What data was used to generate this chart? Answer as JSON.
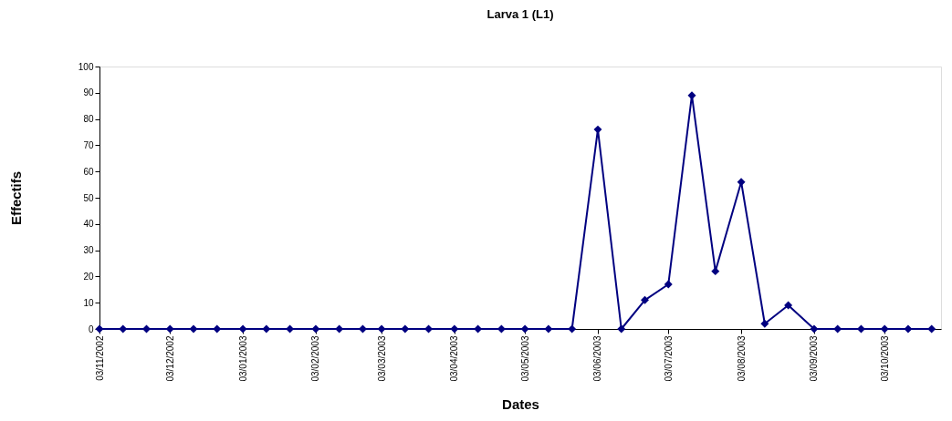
{
  "chart_data": {
    "type": "line",
    "title": "Larva 1 (L1)",
    "xlabel": "Dates",
    "ylabel": "Effectifs",
    "x": [
      "2002-11-03",
      "2002-11-13",
      "2002-11-23",
      "2002-12-03",
      "2002-12-13",
      "2002-12-23",
      "2003-01-03",
      "2003-01-13",
      "2003-01-23",
      "2003-02-03",
      "2003-02-13",
      "2003-02-23",
      "2003-03-03",
      "2003-03-13",
      "2003-03-23",
      "2003-04-03",
      "2003-04-13",
      "2003-04-23",
      "2003-05-03",
      "2003-05-13",
      "2003-05-23",
      "2003-06-03",
      "2003-06-13",
      "2003-06-23",
      "2003-07-03",
      "2003-07-13",
      "2003-07-23",
      "2003-08-03",
      "2003-08-13",
      "2003-08-23",
      "2003-09-03",
      "2003-09-13",
      "2003-09-23",
      "2003-10-03",
      "2003-10-13",
      "2003-10-23"
    ],
    "series": [
      {
        "color": "#000080",
        "values": [
          0,
          0,
          0,
          0,
          0,
          0,
          0,
          0,
          0,
          0,
          0,
          0,
          0,
          0,
          0,
          0,
          0,
          0,
          0,
          0,
          0,
          76,
          0,
          11,
          17,
          89,
          22,
          56,
          2,
          9,
          0,
          0,
          0,
          0,
          0,
          0
        ]
      }
    ],
    "xlim": [
      "2002-11-03",
      "2003-10-27"
    ],
    "xticks": [
      {
        "value": "2002-11-03",
        "label": "03/11/2002"
      },
      {
        "value": "2002-12-03",
        "label": "03/12/2002"
      },
      {
        "value": "2003-01-03",
        "label": "03/01/2003"
      },
      {
        "value": "2003-02-03",
        "label": "03/02/2003"
      },
      {
        "value": "2003-03-03",
        "label": "03/03/2003"
      },
      {
        "value": "2003-04-03",
        "label": "03/04/2003"
      },
      {
        "value": "2003-05-03",
        "label": "03/05/2003"
      },
      {
        "value": "2003-06-03",
        "label": "03/06/2003"
      },
      {
        "value": "2003-07-03",
        "label": "03/07/2003"
      },
      {
        "value": "2003-08-03",
        "label": "03/08/2003"
      },
      {
        "value": "2003-09-03",
        "label": "03/09/2003"
      },
      {
        "value": "2003-10-03",
        "label": "03/10/2003"
      }
    ],
    "ylim": [
      0,
      100
    ],
    "yticks": [
      0,
      10,
      20,
      30,
      40,
      50,
      60,
      70,
      80,
      90,
      100
    ],
    "grid": false,
    "marker": "diamond",
    "line_style": "solid"
  }
}
